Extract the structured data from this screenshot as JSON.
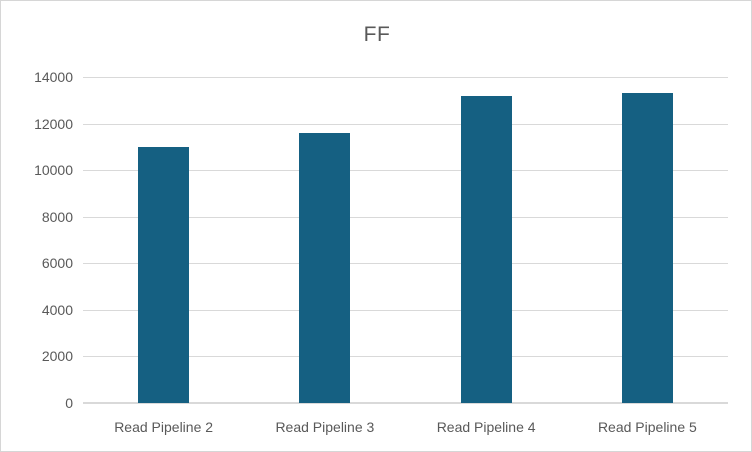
{
  "window": {
    "background": "#ffffff",
    "border_color": "#d6d6d6"
  },
  "chart_data": {
    "type": "bar",
    "title": "FF",
    "categories": [
      "Read Pipeline 2",
      "Read Pipeline 3",
      "Read Pipeline 4",
      "Read Pipeline 5"
    ],
    "values": [
      11000,
      11600,
      13200,
      13300
    ],
    "xlabel": "",
    "ylabel": "",
    "ylim": [
      0,
      14000
    ],
    "ytick_step": 2000,
    "ytick_labels": [
      "0",
      "2000",
      "4000",
      "6000",
      "8000",
      "10000",
      "12000",
      "14000"
    ],
    "grid": true,
    "legend": "none",
    "bar_color": "#156082",
    "gridline_color": "#d9d9d9",
    "axis_line_color": "#d9d9d9",
    "label_color": "#595959",
    "title_color": "#595959"
  }
}
